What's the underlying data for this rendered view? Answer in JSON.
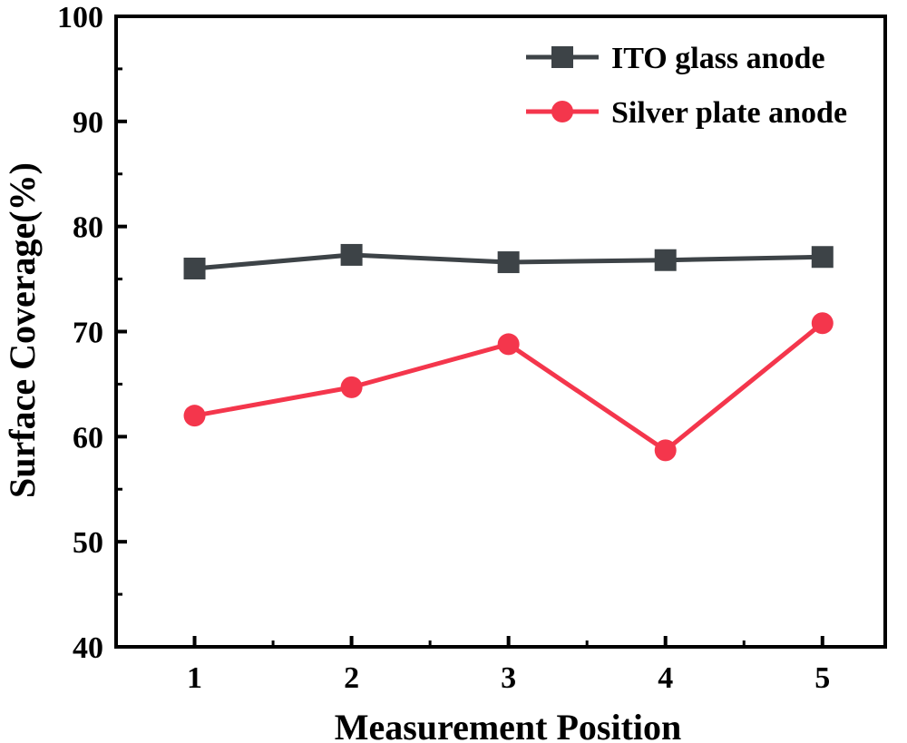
{
  "chart_data": {
    "type": "line",
    "xlabel": "Measurement Position",
    "ylabel": "Surface Coverage(%)",
    "x": [
      1,
      2,
      3,
      4,
      5
    ],
    "x_tick_labels": [
      "1",
      "2",
      "3",
      "4",
      "5"
    ],
    "xlim": [
      0.5,
      5.4
    ],
    "ylim": [
      40,
      100
    ],
    "y_ticks": [
      40,
      50,
      60,
      70,
      80,
      90,
      100
    ],
    "y_tick_labels": [
      "40",
      "50",
      "60",
      "70",
      "80",
      "90",
      "100"
    ],
    "grid": false,
    "legend_position": "top-right",
    "series": [
      {
        "name": "ITO glass anode",
        "values": [
          76.0,
          77.3,
          76.6,
          76.8,
          77.1
        ],
        "color": "#3d4347",
        "marker": "square"
      },
      {
        "name": "Silver plate anode",
        "values": [
          62.0,
          64.7,
          68.8,
          58.7,
          70.8
        ],
        "color": "#f4364c",
        "marker": "circle"
      }
    ]
  }
}
